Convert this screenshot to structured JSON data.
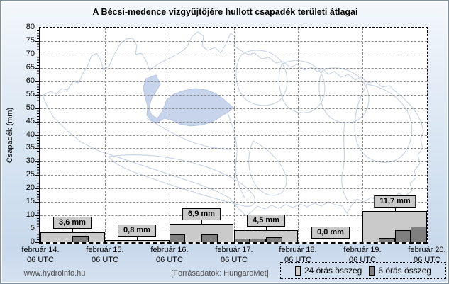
{
  "title": "A Bécsi-medence vízgyűjtőjére hullott csapadék területi átlagai",
  "footer": {
    "website": "www.hydroinfo.hu",
    "source": "[Forrásadatok: HungaroMet]"
  },
  "legend": {
    "items": [
      {
        "label": "24 órás összeg",
        "color": "#cacaca"
      },
      {
        "label": "6 órás összeg",
        "color": "#7f7f7f"
      }
    ]
  },
  "chart_data": {
    "type": "bar",
    "title": "A Bécsi-medence vízgyűjtőjére hullott csapadék területi átlagai",
    "xlabel": "",
    "ylabel": "Csapadék (mm)",
    "ylim": [
      0,
      80
    ],
    "ytick_step": 5,
    "grid": true,
    "legend_position": "bottom-right",
    "categories": [
      {
        "date": "február 14.",
        "time": "06 UTC"
      },
      {
        "date": "február 15.",
        "time": "06 UTC"
      },
      {
        "date": "február 16.",
        "time": "06 UTC"
      },
      {
        "date": "február 17.",
        "time": "06 UTC"
      },
      {
        "date": "február 18.",
        "time": "06 UTC"
      },
      {
        "date": "február 19.",
        "time": "06 UTC"
      },
      {
        "date": "február 20.",
        "time": "06 UTC"
      }
    ],
    "series": [
      {
        "name": "24 órás összeg",
        "color": "#cacaca",
        "values": [
          3.6,
          0.8,
          6.9,
          4.5,
          0.0,
          11.7
        ],
        "labels": [
          "3,6 mm",
          "0,8 mm",
          "6,9 mm",
          "4,5 mm",
          "0,0 mm",
          "11,7 mm"
        ]
      },
      {
        "name": "6 órás összeg",
        "color": "#7f7f7f",
        "values_per_day": [
          [
            0,
            0,
            2.4,
            0
          ],
          [
            0,
            0,
            0,
            0
          ],
          [
            2.8,
            0,
            2.9,
            0
          ],
          [
            1.3,
            1.3,
            1.9,
            0
          ],
          [
            0,
            0,
            0,
            0
          ],
          [
            0,
            1.5,
            4.6,
            5.8
          ]
        ]
      }
    ]
  }
}
